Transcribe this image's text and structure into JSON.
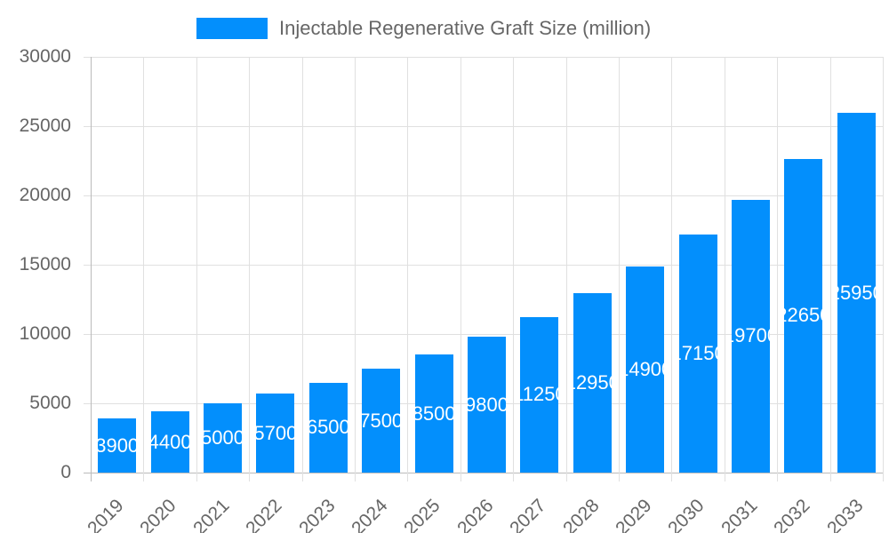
{
  "chart_data": {
    "type": "bar",
    "categories": [
      "2019",
      "2020",
      "2021",
      "2022",
      "2023",
      "2024",
      "2025",
      "2026",
      "2027",
      "2028",
      "2029",
      "2030",
      "2031",
      "2032",
      "2033"
    ],
    "series": [
      {
        "name": "Injectable Regenerative Graft Size (million)",
        "values": [
          3900,
          4400,
          5000,
          5700,
          6500,
          7500,
          8500,
          9800,
          11250,
          12950,
          14900,
          17150,
          19700,
          22650,
          25950
        ]
      }
    ],
    "yticks": [
      0,
      5000,
      10000,
      15000,
      20000,
      25000,
      30000
    ],
    "ylim": [
      0,
      30000
    ],
    "grid": true,
    "legend": "top",
    "color": "#038ffc",
    "data_labels": true
  }
}
